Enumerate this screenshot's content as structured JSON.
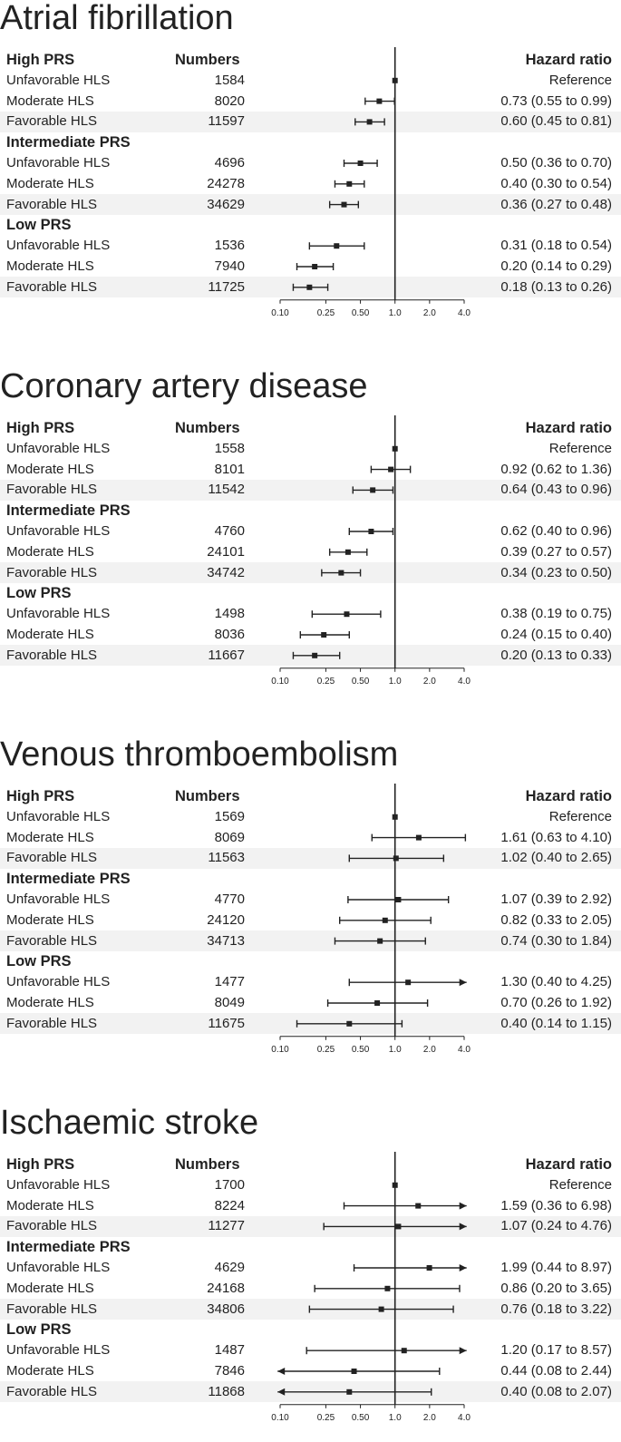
{
  "headers": {
    "group_col": "High PRS",
    "numbers_col": "Numbers",
    "hr_col": "Hazard ratio"
  },
  "chart_data": [
    {
      "type": "forest",
      "title": "Atrial fibrillation",
      "scale": "log",
      "xlim": [
        0.1,
        4.0
      ],
      "xticks": [
        "0.10",
        "0.25",
        "0.50",
        "1.0",
        "2.0",
        "4.0"
      ],
      "xtick_values": [
        0.1,
        0.25,
        0.5,
        1.0,
        2.0,
        4.0
      ],
      "reference_line": 1.0,
      "groups": [
        {
          "name": "High PRS",
          "rows": [
            {
              "label": "Unfavorable HLS",
              "number": "1584",
              "hr": 1.0,
              "lo": 1.0,
              "hi": 1.0,
              "text": "Reference"
            },
            {
              "label": "Moderate HLS",
              "number": "8020",
              "hr": 0.73,
              "lo": 0.55,
              "hi": 0.99,
              "text": "0.73 (0.55 to 0.99)"
            },
            {
              "label": "Favorable HLS",
              "number": "11597",
              "hr": 0.6,
              "lo": 0.45,
              "hi": 0.81,
              "text": "0.60 (0.45 to 0.81)"
            }
          ]
        },
        {
          "name": "Intermediate PRS",
          "rows": [
            {
              "label": "Unfavorable HLS",
              "number": "4696",
              "hr": 0.5,
              "lo": 0.36,
              "hi": 0.7,
              "text": "0.50 (0.36 to 0.70)"
            },
            {
              "label": "Moderate HLS",
              "number": "24278",
              "hr": 0.4,
              "lo": 0.3,
              "hi": 0.54,
              "text": "0.40 (0.30 to 0.54)"
            },
            {
              "label": "Favorable HLS",
              "number": "34629",
              "hr": 0.36,
              "lo": 0.27,
              "hi": 0.48,
              "text": "0.36 (0.27 to 0.48)"
            }
          ]
        },
        {
          "name": "Low PRS",
          "rows": [
            {
              "label": "Unfavorable HLS",
              "number": "1536",
              "hr": 0.31,
              "lo": 0.18,
              "hi": 0.54,
              "text": "0.31 (0.18 to 0.54)"
            },
            {
              "label": "Moderate HLS",
              "number": "7940",
              "hr": 0.2,
              "lo": 0.14,
              "hi": 0.29,
              "text": "0.20 (0.14 to 0.29)"
            },
            {
              "label": "Favorable HLS",
              "number": "11725",
              "hr": 0.18,
              "lo": 0.13,
              "hi": 0.26,
              "text": "0.18 (0.13 to 0.26)"
            }
          ]
        }
      ]
    },
    {
      "type": "forest",
      "title": "Coronary artery disease",
      "scale": "log",
      "xlim": [
        0.1,
        4.0
      ],
      "xticks": [
        "0.10",
        "0.25",
        "0.50",
        "1.0",
        "2.0",
        "4.0"
      ],
      "xtick_values": [
        0.1,
        0.25,
        0.5,
        1.0,
        2.0,
        4.0
      ],
      "reference_line": 1.0,
      "groups": [
        {
          "name": "High PRS",
          "rows": [
            {
              "label": "Unfavorable HLS",
              "number": "1558",
              "hr": 1.0,
              "lo": 1.0,
              "hi": 1.0,
              "text": "Reference"
            },
            {
              "label": "Moderate HLS",
              "number": "8101",
              "hr": 0.92,
              "lo": 0.62,
              "hi": 1.36,
              "text": "0.92 (0.62 to 1.36)"
            },
            {
              "label": "Favorable HLS",
              "number": "11542",
              "hr": 0.64,
              "lo": 0.43,
              "hi": 0.96,
              "text": "0.64 (0.43 to 0.96)"
            }
          ]
        },
        {
          "name": "Intermediate PRS",
          "rows": [
            {
              "label": "Unfavorable HLS",
              "number": "4760",
              "hr": 0.62,
              "lo": 0.4,
              "hi": 0.96,
              "text": "0.62 (0.40 to 0.96)"
            },
            {
              "label": "Moderate HLS",
              "number": "24101",
              "hr": 0.39,
              "lo": 0.27,
              "hi": 0.57,
              "text": "0.39 (0.27 to 0.57)"
            },
            {
              "label": "Favorable HLS",
              "number": "34742",
              "hr": 0.34,
              "lo": 0.23,
              "hi": 0.5,
              "text": "0.34 (0.23 to 0.50)"
            }
          ]
        },
        {
          "name": "Low PRS",
          "rows": [
            {
              "label": "Unfavorable HLS",
              "number": "1498",
              "hr": 0.38,
              "lo": 0.19,
              "hi": 0.75,
              "text": "0.38 (0.19 to 0.75)"
            },
            {
              "label": "Moderate HLS",
              "number": "8036",
              "hr": 0.24,
              "lo": 0.15,
              "hi": 0.4,
              "text": "0.24 (0.15 to 0.40)"
            },
            {
              "label": "Favorable HLS",
              "number": "11667",
              "hr": 0.2,
              "lo": 0.13,
              "hi": 0.33,
              "text": "0.20 (0.13 to 0.33)"
            }
          ]
        }
      ]
    },
    {
      "type": "forest",
      "title": "Venous thromboembolism",
      "scale": "log",
      "xlim": [
        0.1,
        4.0
      ],
      "xticks": [
        "0.10",
        "0.25",
        "0.50",
        "1.0",
        "2.0",
        "4.0"
      ],
      "xtick_values": [
        0.1,
        0.25,
        0.5,
        1.0,
        2.0,
        4.0
      ],
      "reference_line": 1.0,
      "groups": [
        {
          "name": "High PRS",
          "rows": [
            {
              "label": "Unfavorable HLS",
              "number": "1569",
              "hr": 1.0,
              "lo": 1.0,
              "hi": 1.0,
              "text": "Reference"
            },
            {
              "label": "Moderate HLS",
              "number": "8069",
              "hr": 1.61,
              "lo": 0.63,
              "hi": 4.1,
              "text": "1.61 (0.63 to 4.10)"
            },
            {
              "label": "Favorable HLS",
              "number": "11563",
              "hr": 1.02,
              "lo": 0.4,
              "hi": 2.65,
              "text": "1.02 (0.40 to 2.65)"
            }
          ]
        },
        {
          "name": "Intermediate PRS",
          "rows": [
            {
              "label": "Unfavorable HLS",
              "number": "4770",
              "hr": 1.07,
              "lo": 0.39,
              "hi": 2.92,
              "text": "1.07 (0.39 to 2.92)"
            },
            {
              "label": "Moderate HLS",
              "number": "24120",
              "hr": 0.82,
              "lo": 0.33,
              "hi": 2.05,
              "text": "0.82 (0.33 to 2.05)"
            },
            {
              "label": "Favorable HLS",
              "number": "34713",
              "hr": 0.74,
              "lo": 0.3,
              "hi": 1.84,
              "text": "0.74 (0.30 to 1.84)"
            }
          ]
        },
        {
          "name": "Low PRS",
          "rows": [
            {
              "label": "Unfavorable HLS",
              "number": "1477",
              "hr": 1.3,
              "lo": 0.4,
              "hi": 4.25,
              "text": "1.30 (0.40 to 4.25)"
            },
            {
              "label": "Moderate HLS",
              "number": "8049",
              "hr": 0.7,
              "lo": 0.26,
              "hi": 1.92,
              "text": "0.70 (0.26 to 1.92)"
            },
            {
              "label": "Favorable HLS",
              "number": "11675",
              "hr": 0.4,
              "lo": 0.14,
              "hi": 1.15,
              "text": "0.40 (0.14 to 1.15)"
            }
          ]
        }
      ]
    },
    {
      "type": "forest",
      "title": "Ischaemic stroke",
      "scale": "log",
      "xlim": [
        0.1,
        4.0
      ],
      "xticks": [
        "0.10",
        "0.25",
        "0.50",
        "1.0",
        "2.0",
        "4.0"
      ],
      "xtick_values": [
        0.1,
        0.25,
        0.5,
        1.0,
        2.0,
        4.0
      ],
      "reference_line": 1.0,
      "groups": [
        {
          "name": "High PRS",
          "rows": [
            {
              "label": "Unfavorable HLS",
              "number": "1700",
              "hr": 1.0,
              "lo": 1.0,
              "hi": 1.0,
              "text": "Reference"
            },
            {
              "label": "Moderate HLS",
              "number": "8224",
              "hr": 1.59,
              "lo": 0.36,
              "hi": 6.98,
              "text": "1.59 (0.36 to 6.98)"
            },
            {
              "label": "Favorable HLS",
              "number": "11277",
              "hr": 1.07,
              "lo": 0.24,
              "hi": 4.76,
              "text": "1.07 (0.24 to 4.76)"
            }
          ]
        },
        {
          "name": "Intermediate PRS",
          "rows": [
            {
              "label": "Unfavorable HLS",
              "number": "4629",
              "hr": 1.99,
              "lo": 0.44,
              "hi": 8.97,
              "text": "1.99 (0.44 to 8.97)"
            },
            {
              "label": "Moderate HLS",
              "number": "24168",
              "hr": 0.86,
              "lo": 0.2,
              "hi": 3.65,
              "text": "0.86 (0.20 to 3.65)"
            },
            {
              "label": "Favorable HLS",
              "number": "34806",
              "hr": 0.76,
              "lo": 0.18,
              "hi": 3.22,
              "text": "0.76 (0.18 to 3.22)"
            }
          ]
        },
        {
          "name": "Low PRS",
          "rows": [
            {
              "label": "Unfavorable HLS",
              "number": "1487",
              "hr": 1.2,
              "lo": 0.17,
              "hi": 8.57,
              "text": "1.20 (0.17 to 8.57)"
            },
            {
              "label": "Moderate HLS",
              "number": "7846",
              "hr": 0.44,
              "lo": 0.08,
              "hi": 2.44,
              "text": "0.44 (0.08 to 2.44)"
            },
            {
              "label": "Favorable HLS",
              "number": "11868",
              "hr": 0.4,
              "lo": 0.08,
              "hi": 2.07,
              "text": "0.40 (0.08 to 2.07)"
            }
          ]
        }
      ]
    }
  ]
}
